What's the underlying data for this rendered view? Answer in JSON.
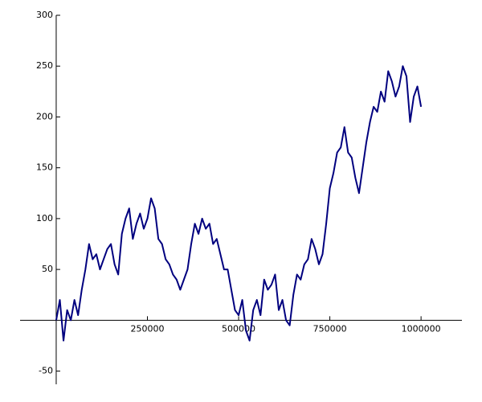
{
  "chart_data": {
    "type": "line",
    "color": "#00007f",
    "x": [
      0,
      10000,
      20000,
      30000,
      40000,
      50000,
      60000,
      70000,
      80000,
      90000,
      100000,
      110000,
      120000,
      130000,
      140000,
      150000,
      160000,
      170000,
      180000,
      190000,
      200000,
      210000,
      220000,
      230000,
      240000,
      250000,
      260000,
      270000,
      280000,
      290000,
      300000,
      310000,
      320000,
      330000,
      340000,
      350000,
      360000,
      370000,
      380000,
      390000,
      400000,
      410000,
      420000,
      430000,
      440000,
      450000,
      460000,
      470000,
      480000,
      490000,
      500000,
      510000,
      520000,
      530000,
      540000,
      550000,
      560000,
      570000,
      580000,
      590000,
      600000,
      610000,
      620000,
      630000,
      640000,
      650000,
      660000,
      670000,
      680000,
      690000,
      700000,
      710000,
      720000,
      730000,
      740000,
      750000,
      760000,
      770000,
      780000,
      790000,
      800000,
      810000,
      820000,
      830000,
      840000,
      850000,
      860000,
      870000,
      880000,
      890000,
      900000,
      910000,
      920000,
      930000,
      940000,
      950000,
      960000,
      970000,
      980000,
      990000,
      1000000
    ],
    "values": [
      0,
      20,
      -20,
      10,
      0,
      20,
      5,
      30,
      50,
      75,
      60,
      65,
      50,
      60,
      70,
      75,
      55,
      45,
      85,
      100,
      110,
      80,
      95,
      105,
      90,
      100,
      120,
      110,
      80,
      75,
      60,
      55,
      45,
      40,
      30,
      40,
      50,
      75,
      95,
      85,
      100,
      90,
      95,
      75,
      80,
      65,
      50,
      50,
      30,
      10,
      5,
      20,
      -10,
      -20,
      10,
      20,
      5,
      40,
      30,
      35,
      45,
      10,
      20,
      0,
      -5,
      25,
      45,
      40,
      55,
      60,
      80,
      70,
      55,
      65,
      95,
      130,
      145,
      165,
      170,
      190,
      165,
      160,
      140,
      125,
      150,
      175,
      195,
      210,
      205,
      225,
      215,
      245,
      235,
      220,
      230,
      250,
      240,
      195,
      220,
      230,
      210
    ],
    "xlim": [
      -99000,
      1112000
    ],
    "ylim": [
      -63,
      300
    ],
    "xticks": [
      250000,
      500000,
      750000,
      1000000
    ],
    "yticks": [
      -50,
      50,
      100,
      150,
      200,
      250,
      300
    ]
  }
}
